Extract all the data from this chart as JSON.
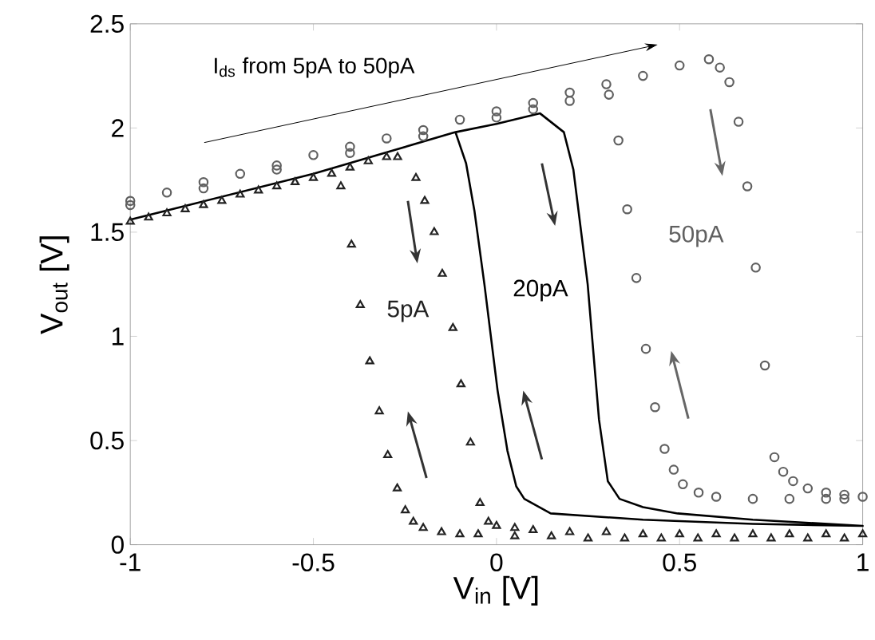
{
  "chart_data": {
    "type": "scatter",
    "xlabel": "V$_{in}$ [V]",
    "ylabel": "V$_{out}$ [V]",
    "annotations": [
      "I$_{ds}$ from 5pA to 50pA"
    ],
    "xlim": [
      -1,
      1
    ],
    "ylim": [
      0,
      2.5
    ],
    "xticks": [
      -1,
      -0.5,
      0,
      0.5,
      1
    ],
    "yticks": [
      0,
      0.5,
      1,
      1.5,
      2,
      2.5
    ],
    "grid": false,
    "series": [
      {
        "name": "5pA",
        "marker": "triangle",
        "color": "#222222",
        "x": [
          -1,
          -0.95,
          -0.9,
          -0.85,
          -0.8,
          -0.75,
          -0.7,
          -0.65,
          -0.6,
          -0.55,
          -0.5,
          -0.45,
          -0.4,
          -0.35,
          -0.3,
          -0.27,
          -0.22,
          -0.196,
          -0.17,
          -0.148,
          -0.119,
          -0.097,
          -0.071,
          -0.045,
          -0.022,
          0,
          0.05,
          0.1,
          0.2,
          0.3,
          0.4,
          0.5,
          0.6,
          0.7,
          0.8,
          0.9,
          1,
          0.95,
          0.85,
          0.75,
          0.65,
          0.55,
          0.45,
          0.35,
          0.25,
          0.15,
          0.05,
          -0.05,
          -0.1,
          -0.15,
          -0.2,
          -0.227,
          -0.249,
          -0.271,
          -0.297,
          -0.32,
          -0.346,
          -0.372,
          -0.396,
          -0.425
        ],
        "values": [
          1.55,
          1.57,
          1.59,
          1.61,
          1.63,
          1.65,
          1.68,
          1.7,
          1.72,
          1.74,
          1.76,
          1.78,
          1.81,
          1.84,
          1.86,
          1.86,
          1.76,
          1.65,
          1.5,
          1.3,
          1.04,
          0.77,
          0.49,
          0.2,
          0.11,
          0.09,
          0.08,
          0.07,
          0.06,
          0.06,
          0.05,
          0.05,
          0.05,
          0.05,
          0.05,
          0.05,
          0.05,
          0.03,
          0.03,
          0.03,
          0.03,
          0.03,
          0.03,
          0.03,
          0.03,
          0.04,
          0.04,
          0.05,
          0.05,
          0.06,
          0.08,
          0.11,
          0.165,
          0.27,
          0.43,
          0.64,
          0.88,
          1.15,
          1.44,
          1.72
        ]
      },
      {
        "name": "20pA",
        "type": "line",
        "marker": "none",
        "color": "#000000",
        "x": [
          -1,
          -0.5,
          -0.112,
          0,
          0.119,
          0.184,
          0.21,
          0.249,
          0.28,
          0.304,
          0.336,
          0.4,
          0.495,
          0.7,
          1,
          0.7,
          0.4,
          0.148,
          0.076,
          0.054,
          0.03,
          0.003,
          -0.033,
          -0.06,
          -0.083,
          -0.112
        ],
        "values": [
          1.56,
          1.78,
          1.98,
          2.02,
          2.07,
          1.98,
          1.8,
          1.25,
          0.6,
          0.305,
          0.22,
          0.18,
          0.15,
          0.12,
          0.09,
          0.1,
          0.12,
          0.15,
          0.22,
          0.28,
          0.45,
          0.74,
          1.25,
          1.6,
          1.83,
          1.98
        ]
      },
      {
        "name": "50pA",
        "marker": "circle",
        "color": "#606060",
        "x": [
          -1,
          -0.9,
          -0.8,
          -0.7,
          -0.6,
          -0.5,
          -0.4,
          -0.3,
          -0.2,
          -0.1,
          0,
          0.1,
          0.2,
          0.3,
          0.4,
          0.5,
          0.58,
          0.61,
          0.636,
          0.661,
          0.685,
          0.708,
          0.733,
          0.759,
          0.783,
          0.81,
          0.85,
          0.9,
          0.95,
          1,
          0.95,
          0.9,
          0.8,
          0.7,
          0.6,
          0.552,
          0.509,
          0.484,
          0.459,
          0.433,
          0.408,
          0.382,
          0.357,
          0.333,
          0.307,
          0.2,
          0.1,
          0,
          -0.2,
          -0.4,
          -0.6,
          -0.8,
          -1
        ],
        "values": [
          1.65,
          1.69,
          1.74,
          1.78,
          1.82,
          1.87,
          1.91,
          1.95,
          1.99,
          2.04,
          2.08,
          2.12,
          2.17,
          2.21,
          2.25,
          2.3,
          2.33,
          2.29,
          2.22,
          2.03,
          1.72,
          1.33,
          0.86,
          0.42,
          0.35,
          0.305,
          0.27,
          0.25,
          0.24,
          0.23,
          0.22,
          0.22,
          0.22,
          0.22,
          0.23,
          0.25,
          0.29,
          0.36,
          0.46,
          0.66,
          0.94,
          1.28,
          1.61,
          1.94,
          2.16,
          2.13,
          2.09,
          2.05,
          1.96,
          1.88,
          1.8,
          1.71,
          1.63
        ]
      }
    ]
  }
}
